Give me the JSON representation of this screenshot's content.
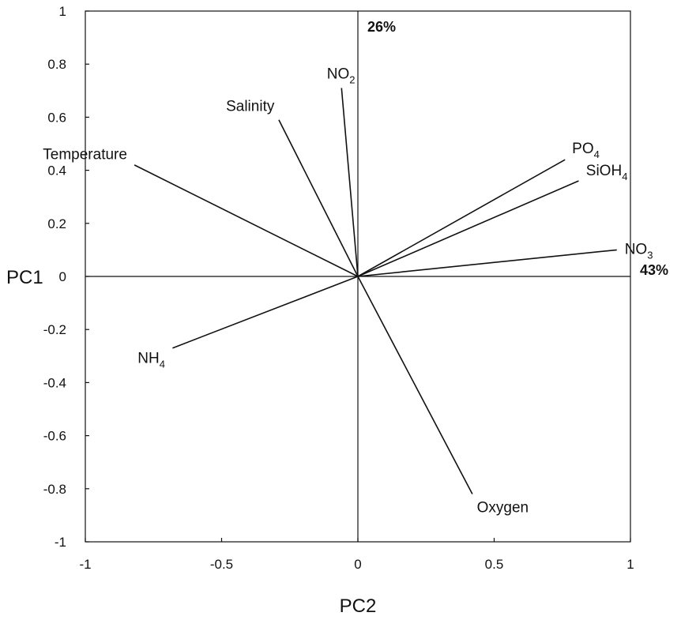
{
  "chart_data": {
    "type": "scatter",
    "subtype": "pca-biplot-loadings",
    "xlabel": "PC2",
    "ylabel": "PC1",
    "xlim": [
      -1,
      1
    ],
    "ylim": [
      -1,
      1
    ],
    "xticks": [
      "-1",
      "-0.5",
      "0",
      "0.5",
      "1"
    ],
    "yticks": [
      "1",
      "0.8",
      "0.6",
      "0.4",
      "0.2",
      "0",
      "-0.2",
      "-0.4",
      "-0.6",
      "-0.8",
      "-1"
    ],
    "grid": false,
    "x_axis_variance_label": "43%",
    "y_axis_variance_label": "26%",
    "vectors": [
      {
        "label": "Temperature",
        "sub": "",
        "x": -0.82,
        "y": 0.42
      },
      {
        "label": "Salinity",
        "sub": "",
        "x": -0.29,
        "y": 0.59
      },
      {
        "label": "NO",
        "sub": "2",
        "x": -0.06,
        "y": 0.71
      },
      {
        "label": "PO",
        "sub": "4",
        "x": 0.76,
        "y": 0.44
      },
      {
        "label": "SiOH",
        "sub": "4",
        "x": 0.81,
        "y": 0.36
      },
      {
        "label": "NO",
        "sub": "3",
        "x": 0.95,
        "y": 0.1
      },
      {
        "label": "NH",
        "sub": "4",
        "x": -0.68,
        "y": -0.27
      },
      {
        "label": "Oxygen",
        "sub": "",
        "x": 0.42,
        "y": -0.82
      }
    ]
  }
}
